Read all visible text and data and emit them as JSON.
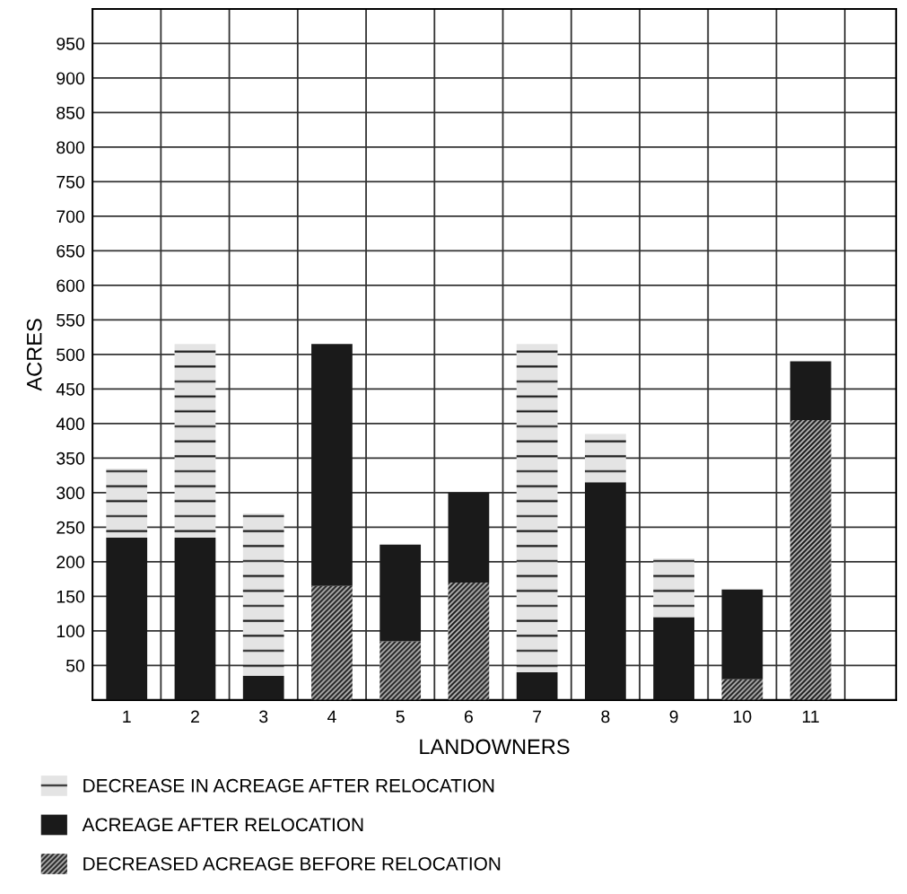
{
  "chart_data": {
    "type": "bar",
    "stacked": true,
    "xlabel": "LANDOWNERS",
    "ylabel": "ACRES",
    "categories": [
      "1",
      "2",
      "3",
      "4",
      "5",
      "6",
      "7",
      "8",
      "9",
      "10",
      "11",
      null
    ],
    "series": [
      {
        "name": "DECREASED ACREAGE BEFORE RELOCATION",
        "color": "#bdbdbd",
        "values": [
          null,
          null,
          null,
          165,
          85,
          170,
          null,
          null,
          null,
          30,
          405,
          null
        ]
      },
      {
        "name": "ACREAGE AFTER RELOCATION",
        "color": "#1a1a1a",
        "values": [
          235,
          235,
          35,
          350,
          140,
          130,
          40,
          315,
          120,
          130,
          85,
          null
        ]
      },
      {
        "name": "DECREASE IN ACREAGE AFTER RELOCATION",
        "color": "#e4e4e4",
        "values": [
          100,
          280,
          235,
          null,
          null,
          null,
          475,
          70,
          85,
          null,
          null,
          null
        ]
      }
    ],
    "ylim": [
      0,
      1000
    ],
    "yticks": [
      50,
      100,
      150,
      200,
      250,
      300,
      350,
      400,
      450,
      500,
      550,
      600,
      650,
      700,
      750,
      800,
      850,
      900,
      950
    ],
    "grid": true,
    "legend": "bottom left"
  }
}
